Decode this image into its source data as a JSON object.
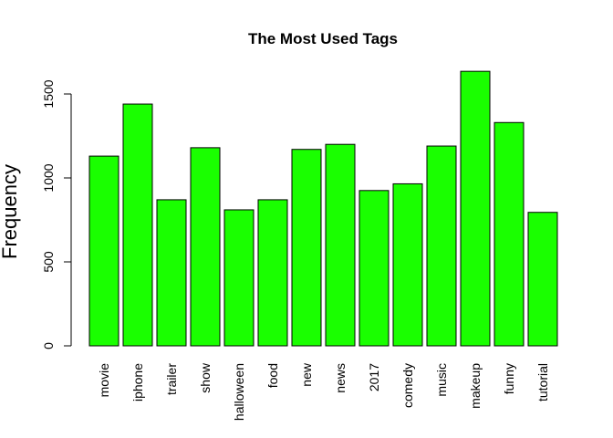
{
  "chart_data": {
    "type": "bar",
    "title": "The Most Used Tags",
    "xlabel": "",
    "ylabel": "Frequency",
    "categories": [
      "movie",
      "iphone",
      "trailer",
      "show",
      "halloween",
      "food",
      "new",
      "news",
      "2017",
      "comedy",
      "music",
      "makeup",
      "funny",
      "tutorial"
    ],
    "values": [
      1130,
      1440,
      870,
      1180,
      810,
      870,
      1170,
      1200,
      925,
      965,
      1190,
      1635,
      1330,
      795
    ],
    "ylim": [
      0,
      1700
    ],
    "yticks": [
      0,
      500,
      1000,
      1500
    ],
    "bar_color": "#1aff00",
    "grid": false,
    "legend": "none"
  }
}
